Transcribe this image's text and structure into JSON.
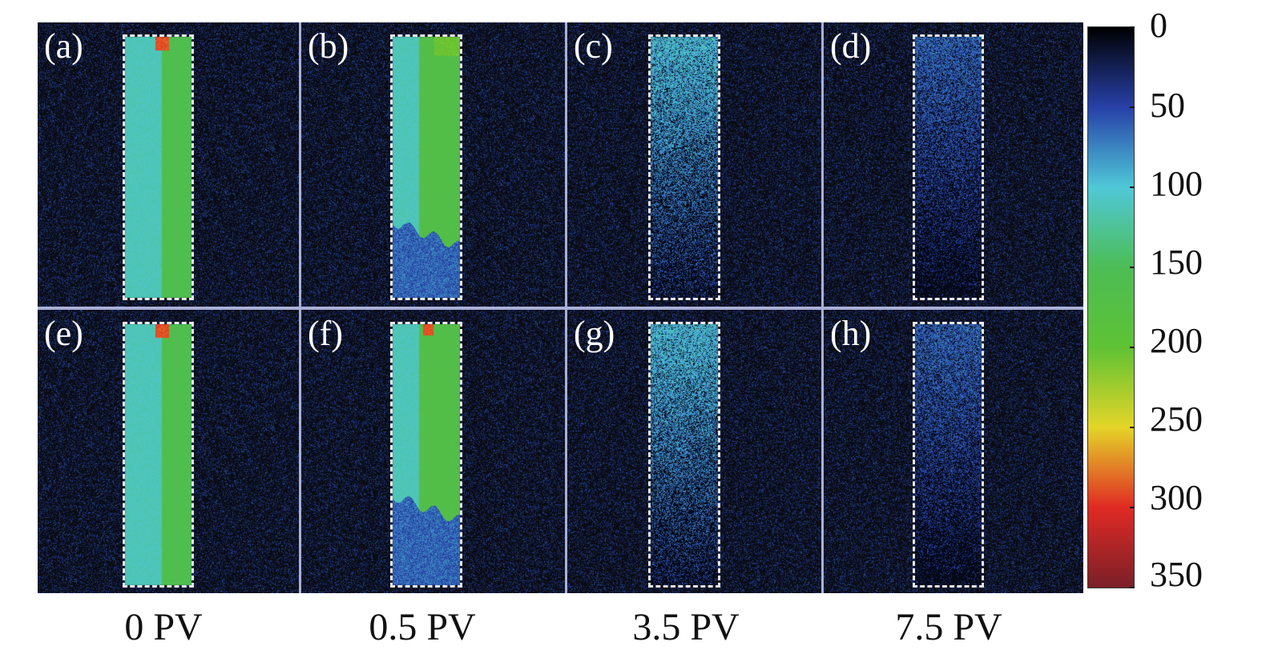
{
  "panels": [
    {
      "label": "(a)",
      "pv": "0 PV",
      "row": 0,
      "col": 0
    },
    {
      "label": "(b)",
      "pv": "0.5 PV",
      "row": 0,
      "col": 1
    },
    {
      "label": "(c)",
      "pv": "3.5 PV",
      "row": 0,
      "col": 2
    },
    {
      "label": "(d)",
      "pv": "7.5 PV",
      "row": 0,
      "col": 3
    },
    {
      "label": "(e)",
      "pv": "0 PV",
      "row": 1,
      "col": 0
    },
    {
      "label": "(f)",
      "pv": "0.5 PV",
      "row": 1,
      "col": 1
    },
    {
      "label": "(g)",
      "pv": "3.5 PV",
      "row": 1,
      "col": 2
    },
    {
      "label": "(h)",
      "pv": "7.5 PV",
      "row": 1,
      "col": 3
    }
  ],
  "column_labels": [
    "0 PV",
    "0.5 PV",
    "3.5 PV",
    "7.5 PV"
  ],
  "colorbar": {
    "ticks": [
      "0",
      "50",
      "100",
      "150",
      "200",
      "250",
      "300",
      "350"
    ],
    "range": [
      0,
      350
    ],
    "colors": [
      "#000000",
      "#2740a8",
      "#4fc8d8",
      "#4cbd55",
      "#5ec234",
      "#e4d528",
      "#e02a24",
      "#7a1f28"
    ]
  }
}
